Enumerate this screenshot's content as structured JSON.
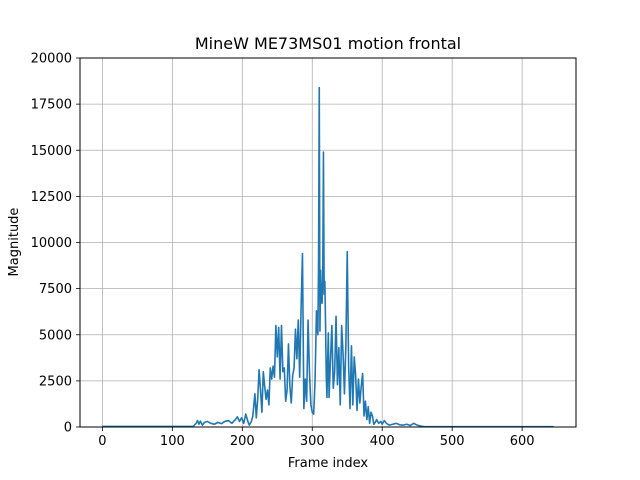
{
  "chart_data": {
    "type": "line",
    "title": "MineW ME73MS01 motion frontal",
    "xlabel": "Frame index",
    "ylabel": "Magnitude",
    "xlim": [
      -32,
      677
    ],
    "ylim": [
      0,
      20000
    ],
    "xticks": [
      0,
      100,
      200,
      300,
      400,
      500,
      600
    ],
    "yticks": [
      0,
      2500,
      5000,
      7500,
      10000,
      12500,
      15000,
      17500,
      20000
    ],
    "grid": true,
    "line_color": "#1f77b4",
    "series": [
      {
        "x": [
          0,
          50,
          100,
          130,
          134,
          136,
          138,
          140,
          143,
          146,
          150,
          155,
          160,
          165,
          170,
          175,
          180,
          185,
          190,
          193,
          196,
          199,
          202,
          205,
          208,
          210,
          213,
          215,
          218,
          220,
          222,
          224,
          226,
          228,
          230,
          232,
          234,
          236,
          238,
          240,
          242,
          244,
          246,
          248,
          250,
          252,
          254,
          256,
          258,
          260,
          262,
          264,
          266,
          268,
          270,
          272,
          274,
          276,
          278,
          280,
          282,
          284,
          286,
          288,
          290,
          292,
          294,
          296,
          298,
          300,
          302,
          304,
          306,
          308,
          309,
          310,
          311,
          312,
          313,
          314,
          315,
          316,
          317,
          318,
          319,
          320,
          321,
          322,
          323,
          324,
          326,
          328,
          330,
          332,
          334,
          336,
          338,
          340,
          342,
          344,
          346,
          348,
          350,
          352,
          354,
          356,
          358,
          360,
          362,
          364,
          366,
          368,
          370,
          372,
          374,
          376,
          378,
          380,
          382,
          384,
          386,
          388,
          390,
          392,
          395,
          398,
          400,
          403,
          406,
          410,
          415,
          420,
          425,
          430,
          435,
          440,
          445,
          450,
          455,
          460,
          500,
          550,
          600,
          645
        ],
        "y": [
          30,
          30,
          30,
          40,
          200,
          350,
          150,
          320,
          100,
          250,
          300,
          200,
          150,
          250,
          180,
          300,
          350,
          200,
          400,
          550,
          300,
          500,
          200,
          700,
          300,
          100,
          300,
          600,
          1800,
          500,
          1500,
          3100,
          2000,
          800,
          3000,
          2200,
          1500,
          2000,
          1200,
          3200,
          2600,
          3300,
          2700,
          5500,
          3800,
          5400,
          2600,
          5500,
          3000,
          3200,
          1400,
          2000,
          4500,
          2200,
          1300,
          2800,
          3200,
          5300,
          3700,
          5800,
          2700,
          6400,
          9400,
          1000,
          2600,
          1400,
          5800,
          3000,
          1200,
          800,
          700,
          2500,
          6300,
          5000,
          9000,
          18400,
          5200,
          8500,
          7000,
          6700,
          8000,
          14900,
          7200,
          7900,
          5600,
          2800,
          1600,
          3500,
          5100,
          1600,
          3600,
          5500,
          2100,
          3000,
          6000,
          2300,
          4300,
          1200,
          5500,
          4000,
          1800,
          4400,
          9500,
          3300,
          1000,
          4400,
          1200,
          3800,
          2800,
          900,
          2600,
          1300,
          2200,
          2900,
          600,
          1400,
          400,
          1100,
          200,
          800,
          600,
          150,
          250,
          400,
          200,
          300,
          150,
          350,
          200,
          100,
          150,
          200,
          120,
          100,
          150,
          80,
          200,
          100,
          50,
          20,
          20,
          20,
          20,
          20
        ]
      }
    ]
  }
}
